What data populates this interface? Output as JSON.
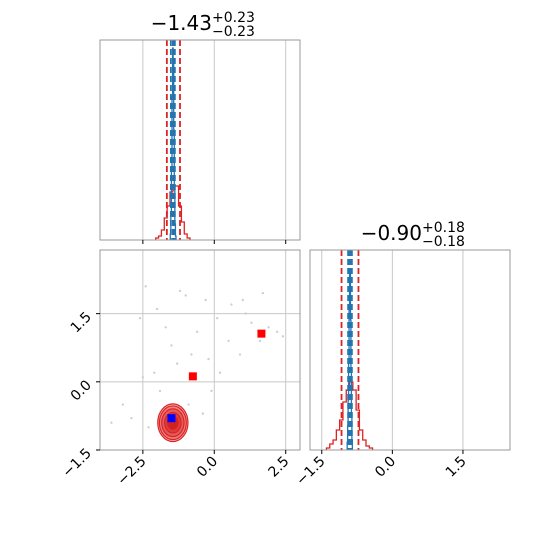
{
  "colors": {
    "red": "#dd2222",
    "blue_line": "#1f77b4",
    "marker_red": "#ff0000",
    "marker_blue": "#0000ff",
    "grid": "#c8c8c8",
    "axes": "#999999",
    "scatter": "#cfcfcf"
  },
  "chart_data": [
    {
      "type": "histogram",
      "panel": "marginal-param-1",
      "title": {
        "main": "−1.43",
        "sup": "+0.23",
        "sub": "−0.23"
      },
      "xlim": [
        -4.0,
        3.0
      ],
      "grid": true,
      "quantile_lines_red": [
        -1.66,
        -1.43,
        -1.2
      ],
      "quantile_lines_blue": [
        -1.52,
        -1.45,
        -1.38
      ],
      "blue_hist": {
        "bin_edges": [
          -1.54,
          -1.52,
          -1.5,
          -1.48,
          -1.46,
          -1.44,
          -1.42,
          -1.4,
          -1.38,
          -1.36,
          -1.34
        ],
        "counts": [
          0.03,
          0.12,
          0.35,
          0.72,
          0.96,
          0.88,
          0.55,
          0.25,
          0.08,
          0.02
        ]
      },
      "red_hist": {
        "bin_edges": [
          -2.05,
          -1.95,
          -1.85,
          -1.75,
          -1.65,
          -1.55,
          -1.45,
          -1.35,
          -1.25,
          -1.15,
          -1.05,
          -0.95,
          -0.85
        ],
        "counts": [
          0.01,
          0.02,
          0.05,
          0.11,
          0.17,
          0.24,
          0.27,
          0.27,
          0.17,
          0.09,
          0.03,
          0.01
        ]
      }
    },
    {
      "type": "histogram",
      "panel": "marginal-param-2",
      "title": {
        "main": "−0.90",
        "sup": "+0.18",
        "sub": "−0.18"
      },
      "xlim": [
        -1.75,
        2.5
      ],
      "grid": true,
      "xticks": [
        "−1.5",
        "0.0",
        "1.5"
      ],
      "xtick_values": [
        -1.5,
        0.0,
        1.5
      ],
      "quantile_lines_red": [
        -1.08,
        -0.9,
        -0.72
      ],
      "quantile_lines_blue": [
        -0.94,
        -0.9,
        -0.86
      ],
      "blue_hist": {
        "bin_edges": [
          -0.96,
          -0.95,
          -0.94,
          -0.93,
          -0.92,
          -0.91,
          -0.9,
          -0.89,
          -0.88,
          -0.87,
          -0.86,
          -0.85
        ],
        "counts": [
          0.04,
          0.12,
          0.25,
          0.45,
          0.7,
          0.9,
          0.88,
          0.65,
          0.4,
          0.18,
          0.05
        ]
      },
      "red_hist": {
        "bin_edges": [
          -1.4,
          -1.33,
          -1.26,
          -1.19,
          -1.12,
          -1.05,
          -0.98,
          -0.91,
          -0.84,
          -0.77,
          -0.7,
          -0.63,
          -0.56,
          -0.49,
          -0.42
        ],
        "counts": [
          0.01,
          0.03,
          0.05,
          0.1,
          0.15,
          0.24,
          0.3,
          0.34,
          0.3,
          0.2,
          0.1,
          0.05,
          0.02,
          0.01
        ]
      }
    },
    {
      "type": "scatter",
      "panel": "joint-param-1-param-2",
      "xlim": [
        -4.0,
        3.0
      ],
      "ylim": [
        -1.5,
        2.9
      ],
      "grid": true,
      "xticks": [
        "−2.5",
        "0.0",
        "2.5"
      ],
      "xtick_values": [
        -2.5,
        0.0,
        2.5
      ],
      "yticks": [
        "−1.5",
        "0.0",
        "1.5"
      ],
      "ytick_values": [
        -1.5,
        0.0,
        1.5
      ],
      "background_points": [
        [
          -2.4,
          2.1
        ],
        [
          -2.6,
          1.4
        ],
        [
          -1.2,
          2.0
        ],
        [
          -1.0,
          1.9
        ],
        [
          -0.3,
          1.8
        ],
        [
          -0.6,
          1.1
        ],
        [
          -0.8,
          0.6
        ],
        [
          -1.3,
          0.4
        ],
        [
          -0.2,
          0.5
        ],
        [
          0.2,
          0.2
        ],
        [
          0.5,
          0.9
        ],
        [
          0.9,
          0.6
        ],
        [
          1.0,
          1.8
        ],
        [
          1.3,
          1.3
        ],
        [
          1.6,
          0.9
        ],
        [
          1.9,
          1.2
        ],
        [
          2.2,
          1.1
        ],
        [
          2.4,
          1.0
        ],
        [
          1.1,
          1.5
        ],
        [
          1.7,
          1.95
        ],
        [
          -2.9,
          -0.8
        ],
        [
          -3.6,
          -0.9
        ],
        [
          -3.2,
          -0.5
        ],
        [
          -1.9,
          -0.2
        ],
        [
          -2.1,
          0.2
        ],
        [
          -1.5,
          0.8
        ],
        [
          -2.5,
          0.1
        ],
        [
          -0.9,
          -0.5
        ],
        [
          -0.4,
          -0.7
        ],
        [
          0.1,
          1.4
        ],
        [
          -1.7,
          1.2
        ],
        [
          -0.1,
          -0.2
        ],
        [
          0.6,
          1.7
        ],
        [
          -2.0,
          1.6
        ],
        [
          -2.3,
          -1.0
        ]
      ],
      "markers_red": [
        [
          -0.75,
          0.12
        ],
        [
          1.65,
          1.06
        ]
      ],
      "marker_blue": [
        -1.5,
        -0.8
      ],
      "contour_center": [
        -1.45,
        -0.9
      ],
      "contour_sigma": [
        0.23,
        0.18
      ],
      "contour_levels_sigma": [
        0.8,
        1.25,
        1.7,
        2.05,
        2.3
      ]
    }
  ]
}
